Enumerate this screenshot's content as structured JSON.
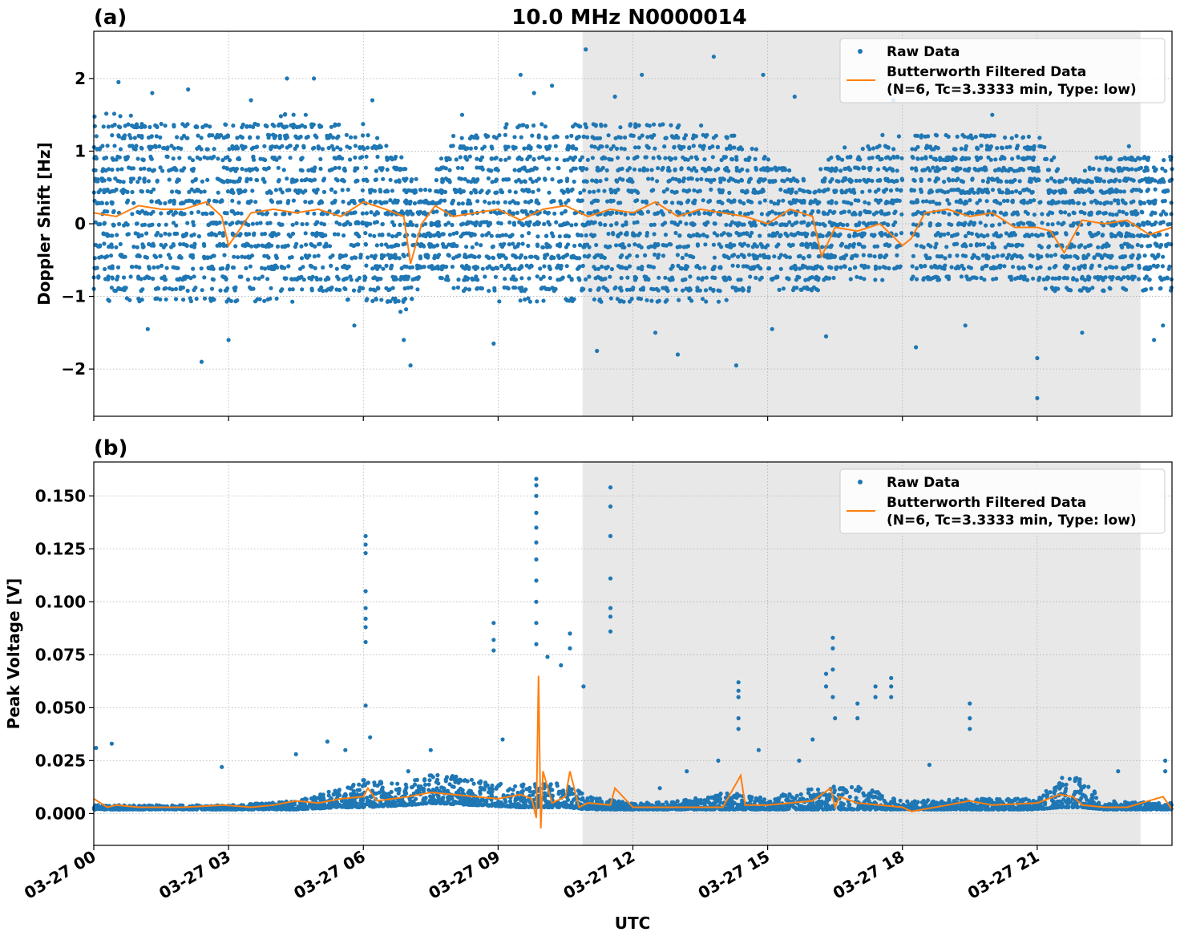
{
  "figure": {
    "title": "10.0 MHz N0000014",
    "xlabel": "UTC",
    "x_ticks": [
      "03-27 00",
      "03-27 03",
      "03-27 06",
      "03-27 09",
      "03-27 12",
      "03-27 15",
      "03-27 18",
      "03-27 21"
    ],
    "colors": {
      "raw": "#1f77b4",
      "filtered": "#ff7f0e",
      "shade": "#e8e8e8",
      "grid": "#b0b0b0"
    }
  },
  "chart_data": [
    {
      "type": "scatter",
      "panel_label": "(a)",
      "ylabel": "Doppler Shift [Hz]",
      "xlim_hours": [
        0,
        24
      ],
      "ylim": [
        -2.65,
        2.65
      ],
      "y_ticks": [
        -2,
        -1,
        0,
        1,
        2
      ],
      "y_tick_labels": [
        "−2",
        "−1",
        "0",
        "1",
        "2"
      ],
      "shaded_region_hours": [
        10.88,
        23.3
      ],
      "grid": true,
      "legend_position": "top-right",
      "legend": [
        "Raw Data",
        "Butterworth Filtered Data",
        "(N=6, Tc=3.3333 min, Type: low)"
      ],
      "series": [
        {
          "name": "Raw Data",
          "kind": "points",
          "band_hours": [
            0,
            1.5,
            3,
            4.5,
            6,
            7.0,
            7.4,
            8.0,
            9,
            10.5,
            12,
            14,
            15.0,
            16.0,
            16.5,
            17.9,
            18.2,
            19,
            21,
            21.8,
            22.5,
            24
          ],
          "band_low": [
            -1.0,
            -1.1,
            -1.1,
            -1.0,
            -1.0,
            -1.3,
            -0.6,
            -0.9,
            -1.0,
            -1.1,
            -1.1,
            -1.0,
            -0.8,
            -1.0,
            -0.7,
            -0.7,
            -0.8,
            -0.8,
            -0.8,
            -1.0,
            -0.9,
            -0.9
          ],
          "band_high": [
            1.5,
            1.4,
            1.4,
            1.5,
            1.3,
            0.8,
            0.4,
            1.2,
            1.3,
            1.4,
            1.4,
            1.3,
            0.9,
            0.6,
            1.0,
            1.2,
            1.2,
            1.2,
            1.2,
            0.6,
            1.0,
            1.0
          ],
          "gap_hours": [
            18.0,
            18.2
          ],
          "outliers": [
            [
              0.55,
              1.95
            ],
            [
              1.3,
              1.8
            ],
            [
              2.4,
              -1.9
            ],
            [
              3.5,
              1.7
            ],
            [
              4.3,
              2.0
            ],
            [
              4.9,
              2.0
            ],
            [
              6.2,
              1.7
            ],
            [
              7.05,
              -1.95
            ],
            [
              8.2,
              1.5
            ],
            [
              9.5,
              2.05
            ],
            [
              10.2,
              1.9
            ],
            [
              10.95,
              2.4
            ],
            [
              12.2,
              2.05
            ],
            [
              13.0,
              -1.8
            ],
            [
              13.8,
              2.3
            ],
            [
              14.3,
              -1.95
            ],
            [
              14.9,
              2.05
            ],
            [
              15.6,
              1.75
            ],
            [
              18.3,
              -1.7
            ],
            [
              20.0,
              1.5
            ],
            [
              21.0,
              -2.4
            ],
            [
              21.0,
              -1.85
            ],
            [
              23.6,
              -1.6
            ],
            [
              1.2,
              -1.45
            ],
            [
              5.8,
              -1.4
            ],
            [
              8.9,
              -1.65
            ],
            [
              11.2,
              -1.75
            ],
            [
              12.5,
              -1.5
            ],
            [
              16.3,
              -1.55
            ],
            [
              19.4,
              -1.4
            ],
            [
              22.0,
              -1.5
            ],
            [
              3.0,
              -1.6
            ],
            [
              6.9,
              -1.6
            ],
            [
              9.8,
              1.8
            ],
            [
              17.8,
              1.7
            ],
            [
              20.9,
              1.85
            ],
            [
              23.8,
              -1.4
            ],
            [
              2.1,
              1.85
            ],
            [
              11.6,
              1.75
            ],
            [
              15.1,
              -1.45
            ]
          ]
        },
        {
          "name": "Butterworth Filtered Data",
          "kind": "line",
          "x_hours": [
            0,
            0.5,
            1,
            1.5,
            2,
            2.5,
            2.85,
            3.0,
            3.5,
            4,
            4.5,
            5,
            5.5,
            6,
            6.5,
            6.9,
            7.05,
            7.3,
            7.6,
            8,
            8.5,
            9,
            9.5,
            10,
            10.5,
            11,
            11.5,
            12,
            12.5,
            13,
            13.5,
            14,
            14.5,
            15,
            15.5,
            16,
            16.2,
            16.5,
            17,
            17.5,
            18.0,
            18.2,
            18.5,
            19,
            19.5,
            20,
            20.5,
            21,
            21.3,
            21.6,
            22,
            22.5,
            23,
            23.5,
            24
          ],
          "y": [
            0.15,
            0.1,
            0.25,
            0.2,
            0.2,
            0.3,
            0.1,
            -0.3,
            0.15,
            0.2,
            0.15,
            0.2,
            0.1,
            0.3,
            0.2,
            0.1,
            -0.55,
            0.0,
            0.25,
            0.1,
            0.15,
            0.2,
            0.05,
            0.2,
            0.25,
            0.1,
            0.2,
            0.15,
            0.3,
            0.1,
            0.2,
            0.15,
            0.1,
            0.0,
            0.2,
            0.1,
            -0.45,
            -0.05,
            -0.1,
            0.0,
            -0.3,
            -0.2,
            0.15,
            0.2,
            0.1,
            0.15,
            -0.05,
            -0.05,
            -0.1,
            -0.4,
            0.05,
            0.0,
            0.05,
            -0.15,
            -0.05
          ]
        }
      ]
    },
    {
      "type": "scatter",
      "panel_label": "(b)",
      "ylabel": "Peak Voltage [V]",
      "xlim_hours": [
        0,
        24
      ],
      "ylim": [
        -0.015,
        0.166
      ],
      "y_ticks": [
        0.0,
        0.025,
        0.05,
        0.075,
        0.1,
        0.125,
        0.15
      ],
      "y_tick_labels": [
        "0.000",
        "0.025",
        "0.050",
        "0.075",
        "0.100",
        "0.125",
        "0.150"
      ],
      "shaded_region_hours": [
        10.88,
        23.3
      ],
      "grid": true,
      "legend_position": "top-right",
      "legend": [
        "Raw Data",
        "Butterworth Filtered Data",
        "(N=6, Tc=3.3333 min, Type: low)"
      ],
      "series": [
        {
          "name": "Raw Data",
          "kind": "points",
          "band_hours": [
            0,
            3,
            4.5,
            5.5,
            6,
            7,
            7.5,
            8.5,
            9.5,
            10.5,
            11,
            12,
            13,
            14,
            15,
            16,
            17,
            18,
            19,
            21,
            21.5,
            22,
            22.5,
            24
          ],
          "band_low": [
            0.002,
            0.002,
            0.002,
            0.003,
            0.003,
            0.004,
            0.005,
            0.004,
            0.003,
            0.003,
            0.002,
            0.002,
            0.002,
            0.002,
            0.002,
            0.002,
            0.002,
            0.002,
            0.002,
            0.002,
            0.003,
            0.003,
            0.002,
            0.002
          ],
          "band_high": [
            0.004,
            0.004,
            0.006,
            0.012,
            0.016,
            0.014,
            0.02,
            0.016,
            0.014,
            0.015,
            0.008,
            0.005,
            0.006,
            0.01,
            0.008,
            0.012,
            0.014,
            0.006,
            0.007,
            0.007,
            0.018,
            0.017,
            0.006,
            0.005
          ],
          "spikes": [
            [
              0.05,
              0.031
            ],
            [
              0.4,
              0.033
            ],
            [
              2.85,
              0.022
            ],
            [
              4.5,
              0.028
            ],
            [
              5.2,
              0.034
            ],
            [
              6.05,
              0.131
            ],
            [
              6.05,
              0.127
            ],
            [
              6.05,
              0.123
            ],
            [
              6.05,
              0.105
            ],
            [
              6.05,
              0.097
            ],
            [
              6.05,
              0.092
            ],
            [
              6.05,
              0.088
            ],
            [
              6.05,
              0.081
            ],
            [
              6.05,
              0.051
            ],
            [
              6.15,
              0.036
            ],
            [
              7.5,
              0.03
            ],
            [
              8.9,
              0.09
            ],
            [
              8.9,
              0.082
            ],
            [
              8.9,
              0.077
            ],
            [
              9.1,
              0.035
            ],
            [
              9.85,
              0.158
            ],
            [
              9.85,
              0.155
            ],
            [
              9.85,
              0.15
            ],
            [
              9.85,
              0.142
            ],
            [
              9.85,
              0.135
            ],
            [
              9.85,
              0.128
            ],
            [
              9.85,
              0.12
            ],
            [
              9.85,
              0.11
            ],
            [
              9.85,
              0.1
            ],
            [
              9.85,
              0.09
            ],
            [
              9.85,
              0.08
            ],
            [
              10.1,
              0.074
            ],
            [
              10.4,
              0.07
            ],
            [
              10.6,
              0.085
            ],
            [
              10.6,
              0.078
            ],
            [
              10.9,
              0.06
            ],
            [
              11.5,
              0.154
            ],
            [
              11.5,
              0.145
            ],
            [
              11.5,
              0.131
            ],
            [
              11.5,
              0.111
            ],
            [
              11.5,
              0.097
            ],
            [
              11.5,
              0.093
            ],
            [
              11.5,
              0.086
            ],
            [
              13.2,
              0.02
            ],
            [
              14.35,
              0.062
            ],
            [
              14.35,
              0.058
            ],
            [
              14.35,
              0.055
            ],
            [
              14.35,
              0.045
            ],
            [
              14.35,
              0.04
            ],
            [
              14.8,
              0.03
            ],
            [
              16.3,
              0.066
            ],
            [
              16.3,
              0.06
            ],
            [
              16.45,
              0.083
            ],
            [
              16.45,
              0.078
            ],
            [
              16.45,
              0.068
            ],
            [
              16.45,
              0.055
            ],
            [
              16.5,
              0.045
            ],
            [
              17.0,
              0.052
            ],
            [
              17.0,
              0.045
            ],
            [
              17.4,
              0.06
            ],
            [
              17.4,
              0.055
            ],
            [
              17.75,
              0.064
            ],
            [
              17.75,
              0.06
            ],
            [
              17.75,
              0.055
            ],
            [
              18.6,
              0.023
            ],
            [
              19.5,
              0.052
            ],
            [
              19.5,
              0.045
            ],
            [
              19.5,
              0.04
            ],
            [
              22.8,
              0.02
            ],
            [
              23.85,
              0.025
            ],
            [
              23.85,
              0.02
            ],
            [
              15.7,
              0.025
            ],
            [
              16.0,
              0.035
            ],
            [
              12.6,
              0.012
            ],
            [
              5.6,
              0.03
            ],
            [
              7.0,
              0.02
            ],
            [
              13.9,
              0.025
            ]
          ]
        },
        {
          "name": "Butterworth Filtered Data",
          "kind": "line",
          "x_hours": [
            0,
            0.3,
            0.5,
            1,
            2,
            2.9,
            3.5,
            4,
            4.5,
            5,
            5.5,
            6,
            6.1,
            6.3,
            7,
            7.5,
            8,
            8.5,
            9,
            9.5,
            9.75,
            9.85,
            9.9,
            9.95,
            10.0,
            10.2,
            10.5,
            10.6,
            10.8,
            11,
            11.5,
            11.6,
            12,
            13,
            14,
            14.4,
            14.5,
            15,
            16,
            16.4,
            16.5,
            16.6,
            17,
            17.5,
            18,
            18.2,
            19,
            19.5,
            20,
            21,
            21.5,
            21.8,
            22,
            22.5,
            23,
            23.8,
            24
          ],
          "y": [
            0.007,
            0.003,
            0.004,
            0.003,
            0.003,
            0.004,
            0.003,
            0.004,
            0.006,
            0.005,
            0.007,
            0.008,
            0.012,
            0.006,
            0.008,
            0.01,
            0.009,
            0.008,
            0.007,
            0.009,
            0.007,
            -0.002,
            0.065,
            -0.007,
            0.02,
            0.005,
            0.008,
            0.02,
            0.003,
            0.005,
            0.004,
            0.012,
            0.003,
            0.003,
            0.003,
            0.018,
            0.004,
            0.004,
            0.006,
            0.012,
            0.003,
            0.008,
            0.005,
            0.004,
            0.003,
            0.001,
            0.004,
            0.006,
            0.004,
            0.005,
            0.009,
            0.008,
            0.004,
            0.003,
            0.003,
            0.008,
            0.002
          ]
        }
      ]
    }
  ]
}
